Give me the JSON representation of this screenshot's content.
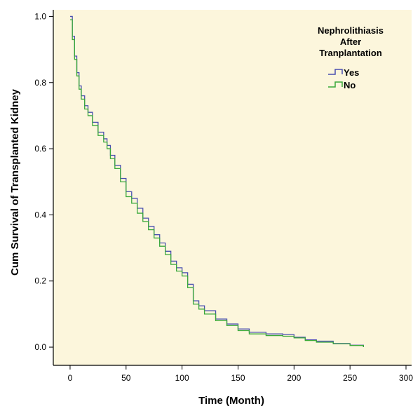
{
  "chart_data": {
    "type": "line",
    "title": "",
    "xlabel": "Time (Month)",
    "ylabel": "Cum Survival of Transplanted Kidney",
    "xlim": [
      -15,
      305
    ],
    "ylim": [
      -0.055,
      1.02
    ],
    "x_ticks": [
      "0",
      "50",
      "100",
      "150",
      "200",
      "250",
      "300"
    ],
    "y_ticks": [
      "0.0",
      "0.2",
      "0.4",
      "0.6",
      "0.8",
      "1.0"
    ],
    "grid": false,
    "step": true,
    "legend": {
      "title_lines": [
        "Nephrolithiasis",
        "After",
        "Tranplantation"
      ],
      "position": "top-right"
    },
    "series": [
      {
        "name": "Yes",
        "color": "#4a4fb0",
        "points": [
          [
            0,
            1.0
          ],
          [
            2,
            0.94
          ],
          [
            4,
            0.88
          ],
          [
            6,
            0.83
          ],
          [
            8,
            0.79
          ],
          [
            10,
            0.76
          ],
          [
            13,
            0.73
          ],
          [
            16,
            0.71
          ],
          [
            20,
            0.68
          ],
          [
            25,
            0.65
          ],
          [
            30,
            0.63
          ],
          [
            33,
            0.61
          ],
          [
            36,
            0.58
          ],
          [
            40,
            0.55
          ],
          [
            45,
            0.51
          ],
          [
            50,
            0.47
          ],
          [
            55,
            0.45
          ],
          [
            60,
            0.42
          ],
          [
            65,
            0.39
          ],
          [
            70,
            0.365
          ],
          [
            75,
            0.34
          ],
          [
            80,
            0.315
          ],
          [
            85,
            0.29
          ],
          [
            90,
            0.26
          ],
          [
            95,
            0.24
          ],
          [
            100,
            0.225
          ],
          [
            105,
            0.19
          ],
          [
            110,
            0.14
          ],
          [
            115,
            0.125
          ],
          [
            120,
            0.11
          ],
          [
            130,
            0.085
          ],
          [
            140,
            0.07
          ],
          [
            150,
            0.055
          ],
          [
            160,
            0.045
          ],
          [
            175,
            0.04
          ],
          [
            190,
            0.038
          ],
          [
            200,
            0.03
          ],
          [
            210,
            0.022
          ],
          [
            220,
            0.018
          ],
          [
            235,
            0.011
          ],
          [
            250,
            0.006
          ],
          [
            262,
            0.0
          ]
        ]
      },
      {
        "name": "No",
        "color": "#3aa83a",
        "points": [
          [
            0,
            0.99
          ],
          [
            2,
            0.93
          ],
          [
            4,
            0.87
          ],
          [
            6,
            0.82
          ],
          [
            8,
            0.78
          ],
          [
            10,
            0.75
          ],
          [
            13,
            0.72
          ],
          [
            16,
            0.7
          ],
          [
            20,
            0.67
          ],
          [
            25,
            0.64
          ],
          [
            30,
            0.62
          ],
          [
            33,
            0.6
          ],
          [
            36,
            0.57
          ],
          [
            40,
            0.54
          ],
          [
            45,
            0.5
          ],
          [
            50,
            0.455
          ],
          [
            55,
            0.435
          ],
          [
            60,
            0.405
          ],
          [
            65,
            0.38
          ],
          [
            70,
            0.355
          ],
          [
            75,
            0.33
          ],
          [
            80,
            0.305
          ],
          [
            85,
            0.28
          ],
          [
            90,
            0.25
          ],
          [
            95,
            0.23
          ],
          [
            100,
            0.215
          ],
          [
            105,
            0.18
          ],
          [
            110,
            0.13
          ],
          [
            115,
            0.115
          ],
          [
            120,
            0.1
          ],
          [
            130,
            0.08
          ],
          [
            140,
            0.065
          ],
          [
            150,
            0.05
          ],
          [
            160,
            0.04
          ],
          [
            175,
            0.035
          ],
          [
            190,
            0.033
          ],
          [
            200,
            0.028
          ],
          [
            210,
            0.02
          ],
          [
            220,
            0.015
          ],
          [
            235,
            0.01
          ],
          [
            250,
            0.005
          ],
          [
            262,
            0.0
          ]
        ]
      }
    ]
  },
  "colors": {
    "plot_background": "#fcf6dc",
    "axis": "#000000"
  }
}
